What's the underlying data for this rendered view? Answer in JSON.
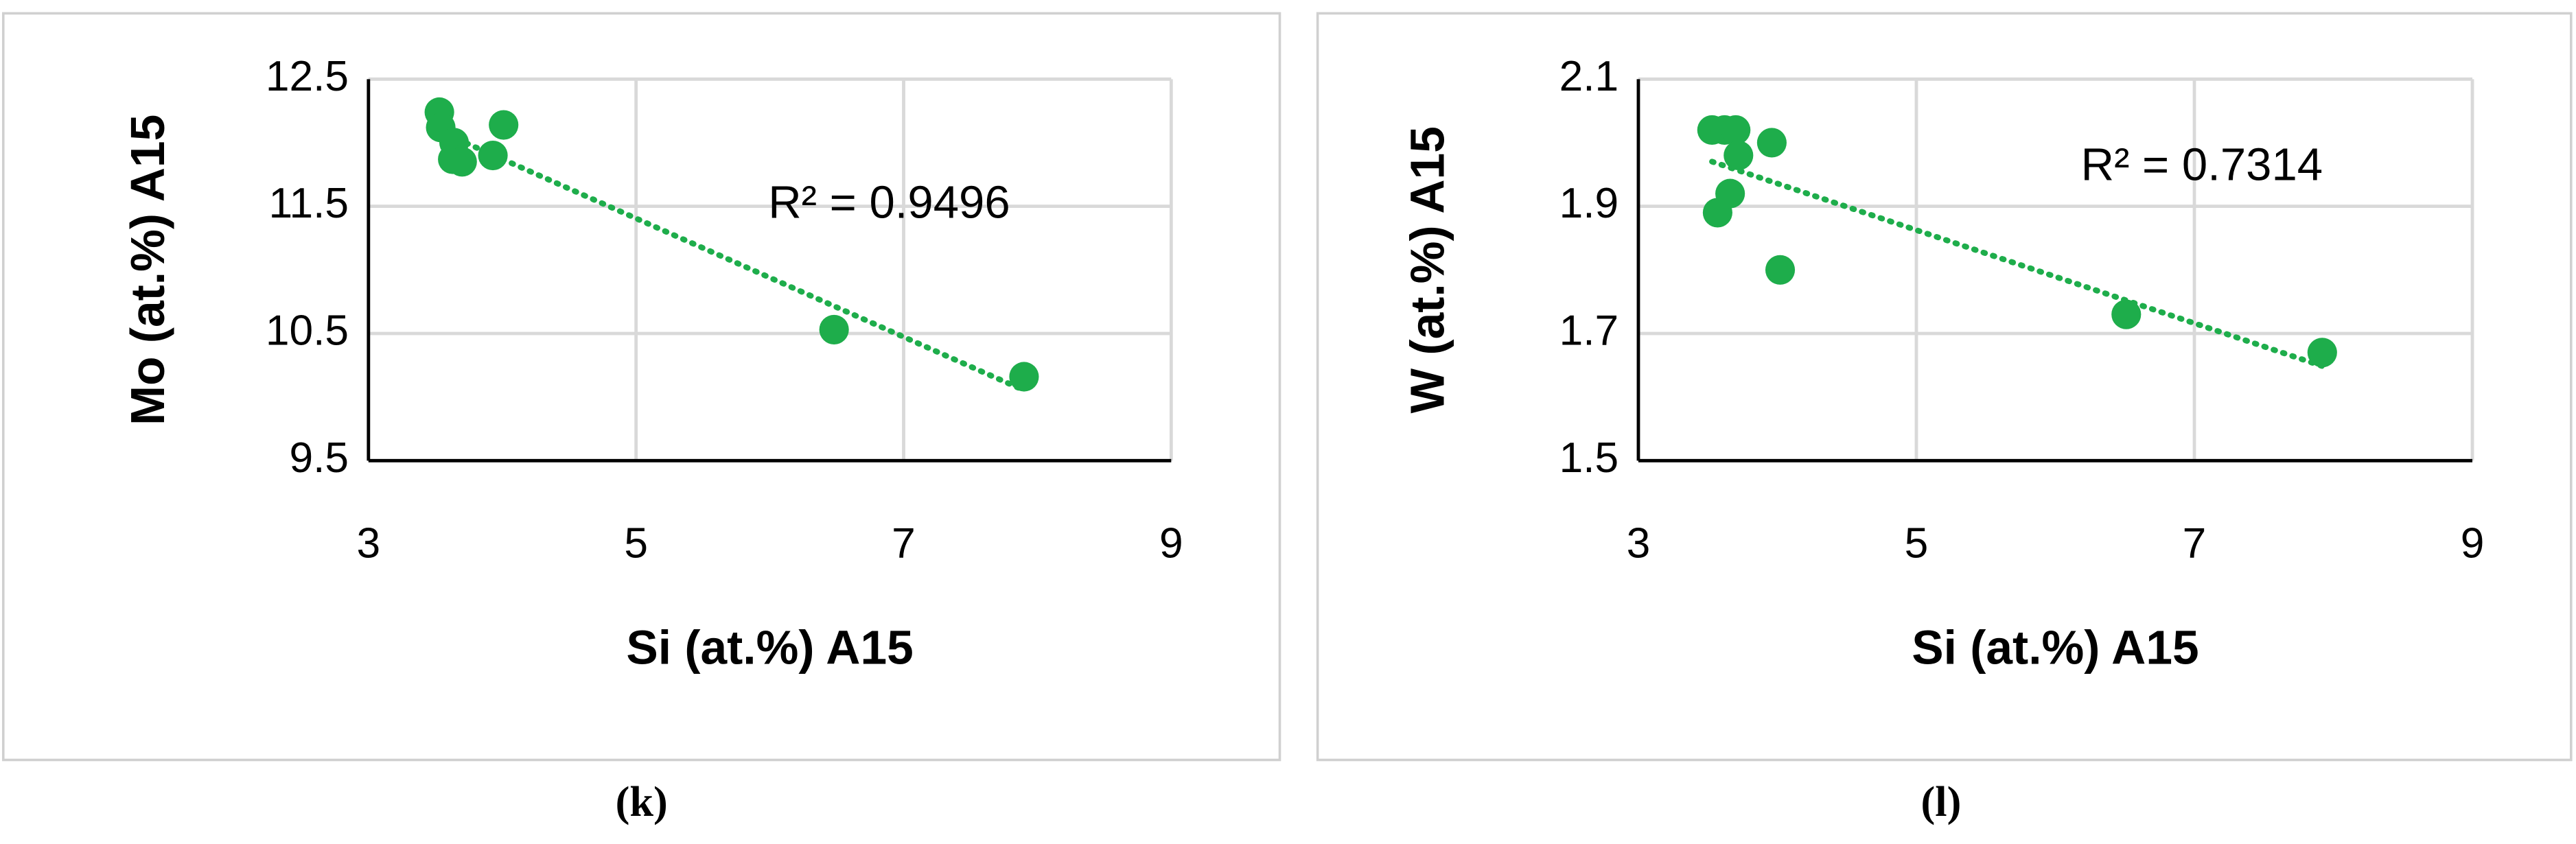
{
  "chart_data": [
    {
      "type": "scatter",
      "caption": "(k)",
      "xlabel": "Si (at.%) A15",
      "ylabel": "Mo (at.%) A15",
      "annotation": "R² = 0.9496",
      "x": [
        3.53,
        3.54,
        3.64,
        3.63,
        3.7,
        3.93,
        4.01,
        6.48,
        7.9
      ],
      "series": [
        {
          "color": "#1ead4b",
          "values": [
            12.24,
            12.12,
            12.0,
            11.87,
            11.85,
            11.9,
            12.14,
            10.53,
            10.16
          ]
        }
      ],
      "trendline": "linear",
      "grid": true,
      "xlim": [
        3,
        9
      ],
      "xticks": [
        3,
        5,
        7,
        9
      ],
      "ylim": [
        9.5,
        12.5
      ],
      "yticks": [
        9.5,
        10.5,
        11.5,
        12.5
      ]
    },
    {
      "type": "scatter",
      "caption": "(l)",
      "xlabel": "Si (at.%) A15",
      "ylabel": "W (at.%) A15",
      "annotation": "R² = 0.7314",
      "x": [
        3.53,
        3.62,
        3.7,
        3.72,
        3.66,
        3.57,
        3.96,
        4.02,
        6.51,
        7.92
      ],
      "series": [
        {
          "color": "#1ead4b",
          "values": [
            2.02,
            2.02,
            2.02,
            1.98,
            1.92,
            1.89,
            2.0,
            1.8,
            1.73,
            1.67
          ]
        }
      ],
      "trendline": "linear",
      "grid": true,
      "xlim": [
        3,
        9
      ],
      "xticks": [
        3,
        5,
        7,
        9
      ],
      "ylim": [
        1.5,
        2.1
      ],
      "yticks": [
        1.5,
        1.7,
        1.9,
        2.1
      ]
    }
  ]
}
